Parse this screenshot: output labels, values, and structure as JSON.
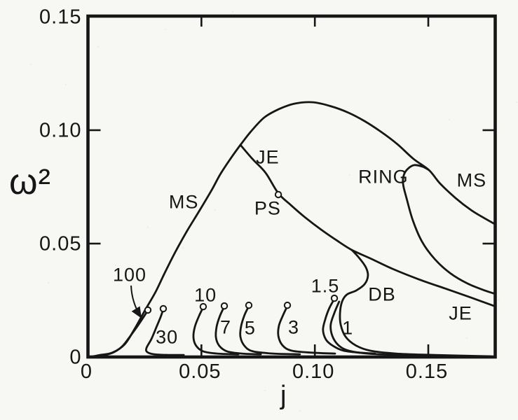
{
  "figure": {
    "background": "#f7f7f4",
    "ink": "#161616"
  },
  "chart_data": {
    "type": "line",
    "title": "",
    "xlabel": "j",
    "ylabel": "ω²",
    "xlim": [
      0,
      0.1795
    ],
    "ylim": [
      0,
      0.1503
    ],
    "grid": false,
    "legend": "none (labels annotated on curves)",
    "x_ticks": [
      {
        "value": 0,
        "label": "0"
      },
      {
        "value": 0.05,
        "label": "0.05"
      },
      {
        "value": 0.1,
        "label": "0.10"
      },
      {
        "value": 0.15,
        "label": "0.15"
      }
    ],
    "y_ticks": [
      {
        "value": 0,
        "label": "0"
      },
      {
        "value": 0.05,
        "label": "0.05"
      },
      {
        "value": 0.1,
        "label": "0.10"
      },
      {
        "value": 0.15,
        "label": "0.15"
      }
    ],
    "series": [
      {
        "name": "MS",
        "points": [
          [
            0.0008,
            0.0
          ],
          [
            0.0054,
            0.0009
          ],
          [
            0.0107,
            0.0019
          ],
          [
            0.0162,
            0.0056
          ],
          [
            0.0205,
            0.0123
          ],
          [
            0.0252,
            0.0207
          ],
          [
            0.0298,
            0.0287
          ],
          [
            0.0338,
            0.037
          ],
          [
            0.0385,
            0.0463
          ],
          [
            0.0437,
            0.0556
          ],
          [
            0.0493,
            0.0648
          ],
          [
            0.0548,
            0.0741
          ],
          [
            0.0585,
            0.0809
          ],
          [
            0.0632,
            0.088
          ],
          [
            0.0672,
            0.0935
          ],
          [
            0.0718,
            0.0994
          ],
          [
            0.0777,
            0.1056
          ],
          [
            0.0842,
            0.1093
          ],
          [
            0.091,
            0.1117
          ],
          [
            0.0993,
            0.1123
          ],
          [
            0.1073,
            0.1105
          ],
          [
            0.1148,
            0.1077
          ],
          [
            0.1219,
            0.104
          ],
          [
            0.129,
            0.0994
          ],
          [
            0.1364,
            0.0938
          ],
          [
            0.1435,
            0.0873
          ],
          [
            0.1503,
            0.0824
          ],
          [
            0.1552,
            0.0765
          ],
          [
            0.162,
            0.0701
          ],
          [
            0.1688,
            0.0648
          ],
          [
            0.1744,
            0.0614
          ],
          [
            0.1793,
            0.0586
          ]
        ]
      },
      {
        "name": "JE",
        "points": [
          [
            0.0672,
            0.0935
          ],
          [
            0.0728,
            0.087
          ],
          [
            0.0783,
            0.0812
          ],
          [
            0.0839,
            0.0722
          ],
          [
            0.0894,
            0.067
          ],
          [
            0.0959,
            0.0614
          ],
          [
            0.1027,
            0.0562
          ],
          [
            0.1095,
            0.0515
          ],
          [
            0.1163,
            0.0472
          ],
          [
            0.125,
            0.0432
          ],
          [
            0.1342,
            0.0389
          ],
          [
            0.1457,
            0.0343
          ],
          [
            0.1574,
            0.0302
          ],
          [
            0.1688,
            0.0262
          ],
          [
            0.179,
            0.0225
          ]
        ]
      },
      {
        "name": "RING",
        "points": [
          [
            0.1503,
            0.0824
          ],
          [
            0.1475,
            0.0839
          ],
          [
            0.1438,
            0.0846
          ],
          [
            0.141,
            0.083
          ],
          [
            0.1392,
            0.0802
          ],
          [
            0.1389,
            0.0762
          ],
          [
            0.1404,
            0.0701
          ],
          [
            0.1432,
            0.0602
          ],
          [
            0.1472,
            0.0509
          ],
          [
            0.1528,
            0.0432
          ],
          [
            0.1596,
            0.037
          ],
          [
            0.1673,
            0.0324
          ],
          [
            0.175,
            0.0293
          ],
          [
            0.1787,
            0.0281
          ]
        ]
      },
      {
        "name": "DB",
        "points": [
          [
            0.1163,
            0.0472
          ],
          [
            0.1197,
            0.0435
          ],
          [
            0.1225,
            0.0395
          ],
          [
            0.1234,
            0.0358
          ],
          [
            0.1219,
            0.0321
          ],
          [
            0.1182,
            0.0293
          ],
          [
            0.1141,
            0.0275
          ],
          [
            0.112,
            0.0244
          ],
          [
            0.1111,
            0.0194
          ],
          [
            0.1114,
            0.0142
          ],
          [
            0.1135,
            0.009
          ],
          [
            0.1179,
            0.0052
          ],
          [
            0.1243,
            0.0028
          ],
          [
            0.1358,
            0.0015
          ],
          [
            0.1528,
            0.0009
          ],
          [
            0.1775,
            0.0003
          ]
        ]
      },
      {
        "name": "seq-100",
        "points": [
          [
            0.0261,
            0.0201
          ],
          [
            0.0243,
            0.0173
          ],
          [
            0.0218,
            0.0136
          ],
          [
            0.0187,
            0.0093
          ],
          [
            0.0153,
            0.0049
          ],
          [
            0.0116,
            0.0022
          ],
          [
            0.0076,
            0.0009
          ],
          [
            0.0032,
            0.0003
          ]
        ]
      },
      {
        "name": "seq-30",
        "points": [
          [
            0.0332,
            0.021
          ],
          [
            0.032,
            0.0176
          ],
          [
            0.0301,
            0.013
          ],
          [
            0.028,
            0.008
          ],
          [
            0.0258,
            0.004
          ],
          [
            0.0261,
            0.0022
          ],
          [
            0.0292,
            0.0012
          ],
          [
            0.0354,
            0.0009
          ],
          [
            0.0422,
            0.0009
          ]
        ]
      },
      {
        "name": "seq-10",
        "points": [
          [
            0.0508,
            0.0219
          ],
          [
            0.049,
            0.0182
          ],
          [
            0.0471,
            0.0133
          ],
          [
            0.0465,
            0.0086
          ],
          [
            0.0477,
            0.0049
          ],
          [
            0.0508,
            0.0025
          ],
          [
            0.057,
            0.0015
          ],
          [
            0.0663,
            0.0012
          ]
        ]
      },
      {
        "name": "seq-7",
        "points": [
          [
            0.0601,
            0.0222
          ],
          [
            0.0582,
            0.0182
          ],
          [
            0.0567,
            0.0133
          ],
          [
            0.0564,
            0.0086
          ],
          [
            0.0579,
            0.0049
          ],
          [
            0.0613,
            0.0025
          ],
          [
            0.0678,
            0.0015
          ],
          [
            0.0762,
            0.0012
          ]
        ]
      },
      {
        "name": "seq-5",
        "points": [
          [
            0.0709,
            0.0225
          ],
          [
            0.069,
            0.0185
          ],
          [
            0.0675,
            0.0136
          ],
          [
            0.0672,
            0.0089
          ],
          [
            0.069,
            0.0049
          ],
          [
            0.0727,
            0.0025
          ],
          [
            0.0817,
            0.0015
          ],
          [
            0.0934,
            0.0012
          ]
        ]
      },
      {
        "name": "seq-3",
        "points": [
          [
            0.0879,
            0.0225
          ],
          [
            0.086,
            0.0185
          ],
          [
            0.0842,
            0.0139
          ],
          [
            0.0839,
            0.0093
          ],
          [
            0.0857,
            0.0052
          ],
          [
            0.0897,
            0.0028
          ],
          [
            0.0987,
            0.0019
          ],
          [
            0.1089,
            0.0015
          ]
        ]
      },
      {
        "name": "seq-1.5",
        "points": [
          [
            0.1086,
            0.0256
          ],
          [
            0.1064,
            0.0216
          ],
          [
            0.1046,
            0.0167
          ],
          [
            0.1036,
            0.012
          ],
          [
            0.1049,
            0.0077
          ],
          [
            0.108,
            0.0049
          ],
          [
            0.1126,
            0.0028
          ],
          [
            0.1197,
            0.0019
          ],
          [
            0.1265,
            0.0015
          ]
        ]
      },
      {
        "name": "seq-1",
        "points": [
          [
            0.1107,
            0.0244
          ],
          [
            0.1086,
            0.0194
          ],
          [
            0.107,
            0.0142
          ],
          [
            0.1077,
            0.0093
          ],
          [
            0.1104,
            0.0052
          ],
          [
            0.1148,
            0.0028
          ],
          [
            0.1234,
            0.0015
          ],
          [
            0.1373,
            0.0009
          ],
          [
            0.1512,
            0.0006
          ]
        ]
      }
    ],
    "markers": [
      {
        "name": "PS-bifurcation-point",
        "x": 0.0839,
        "y": 0.0716
      },
      {
        "name": "end-100",
        "x": 0.0264,
        "y": 0.0207
      },
      {
        "name": "end-30",
        "x": 0.0332,
        "y": 0.0213
      },
      {
        "name": "end-10",
        "x": 0.0508,
        "y": 0.0222
      },
      {
        "name": "end-7",
        "x": 0.0601,
        "y": 0.0225
      },
      {
        "name": "end-5",
        "x": 0.0709,
        "y": 0.0228
      },
      {
        "name": "end-3",
        "x": 0.0879,
        "y": 0.0228
      },
      {
        "name": "end-1.5",
        "x": 0.1086,
        "y": 0.0259
      }
    ],
    "annotations": [
      {
        "text": "MS",
        "x": 0.0422,
        "y": 0.0685
      },
      {
        "text": "JE",
        "x": 0.0792,
        "y": 0.0883
      },
      {
        "text": "PS",
        "x": 0.0792,
        "y": 0.0657
      },
      {
        "text": "RING",
        "x": 0.1302,
        "y": 0.0796
      },
      {
        "text": "MS",
        "x": 0.1691,
        "y": 0.0781
      },
      {
        "text": "DB",
        "x": 0.1296,
        "y": 0.0278
      },
      {
        "text": "JE",
        "x": 0.1642,
        "y": 0.0194
      },
      {
        "text": "100",
        "x": 0.0184,
        "y": 0.0364
      },
      {
        "text": "30",
        "x": 0.0348,
        "y": 0.009
      },
      {
        "text": "10",
        "x": 0.0518,
        "y": 0.0275
      },
      {
        "text": "7",
        "x": 0.0607,
        "y": 0.0133
      },
      {
        "text": "5",
        "x": 0.0715,
        "y": 0.013
      },
      {
        "text": "3",
        "x": 0.0907,
        "y": 0.0133
      },
      {
        "text": "1.5",
        "x": 0.1046,
        "y": 0.0315
      },
      {
        "text": "1",
        "x": 0.1145,
        "y": 0.013
      }
    ],
    "arrow": {
      "name": "label-100-pointer",
      "from": [
        0.019,
        0.0315
      ],
      "ctrl": [
        0.0193,
        0.0241
      ],
      "to": [
        0.0233,
        0.0176
      ]
    }
  }
}
